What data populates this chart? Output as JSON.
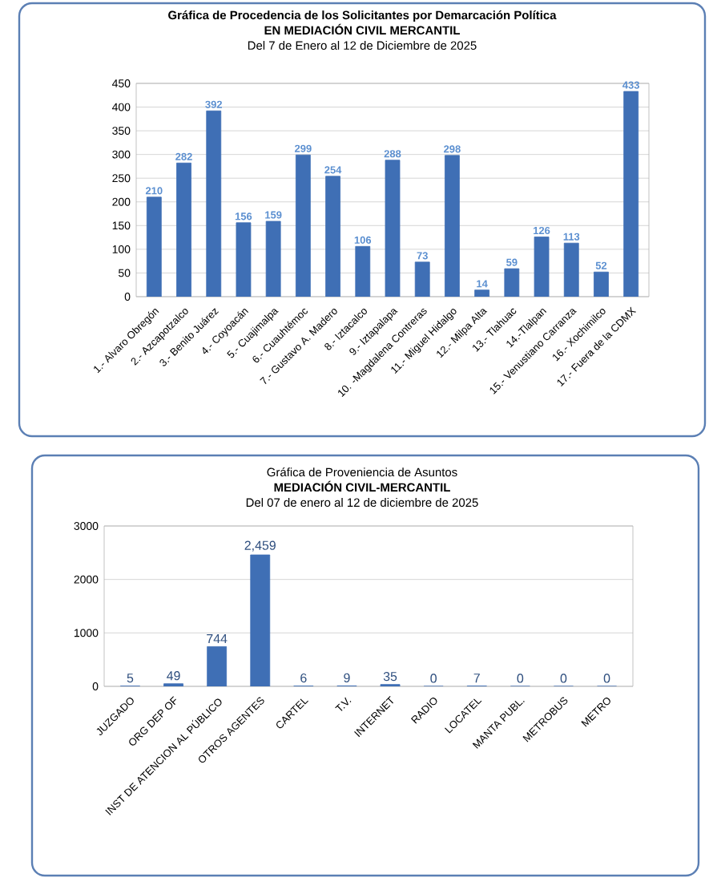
{
  "chart_data": [
    {
      "type": "bar",
      "title": "Gráfica de Procedencia de los Solicitantes por Demarcación Política",
      "subtitle": "EN MEDIACIÓN CIVIL MERCANTIL",
      "annotations": [
        "Del 7 de Enero al 12 de Diciembre de 2025"
      ],
      "categories": [
        "1.- Alvaro Obregón",
        "2.- Azcapotzalco",
        "3.- Benito Juárez",
        "4.- Coyoacán",
        "5.- Cuajimalpa",
        "6.- Cuauhtémoc",
        "7.- Gustavo A. Madero",
        "8.- Iztacalco",
        "9.- Iztapalapa",
        "10. -Magdalena  Contreras",
        "11.- Miguel Hidalgo",
        "12.- Milpa Alta",
        "13.- Tlahuac",
        "14.-Tlalpan",
        "15.- Venustiano Carranza",
        "16.- Xochimilco",
        "17.- Fuera de la CDMX"
      ],
      "values": [
        210,
        282,
        392,
        156,
        159,
        299,
        254,
        106,
        288,
        73,
        298,
        14,
        59,
        126,
        113,
        52,
        433
      ],
      "color": "#3f6fb5",
      "ylim": [
        0,
        450
      ],
      "yticks": [
        0,
        50,
        100,
        150,
        200,
        250,
        300,
        350,
        400,
        450
      ],
      "grid": "y",
      "data_labels": true
    },
    {
      "type": "bar",
      "title": "Gráfica de Proveniencia de Asuntos",
      "subtitle": "MEDIACIÓN CIVIL-MERCANTIL",
      "annotations": [
        "Del 07 de enero al 12 de diciembre de 2025"
      ],
      "categories": [
        "JUZGADO",
        "ORG DEP OF",
        "INST DE ATENCION AL PÚBLICO",
        "OTROS AGENTES",
        "CARTEL",
        "T.V.",
        "INTERNET",
        "RADIO",
        "LOCATEL",
        "MANTA PUBL.",
        "METROBUS",
        "METRO"
      ],
      "values": [
        5,
        49,
        744,
        2459,
        6,
        9,
        35,
        0,
        7,
        0,
        0,
        0
      ],
      "value_labels": [
        "5",
        "49",
        "744",
        "2,459",
        "6",
        "9",
        "35",
        "0",
        "7",
        "0",
        "0",
        "0"
      ],
      "color": "#3f6fb5",
      "ylim": [
        0,
        3000
      ],
      "yticks": [
        0,
        1000,
        2000,
        3000
      ],
      "grid": "y"
    }
  ]
}
